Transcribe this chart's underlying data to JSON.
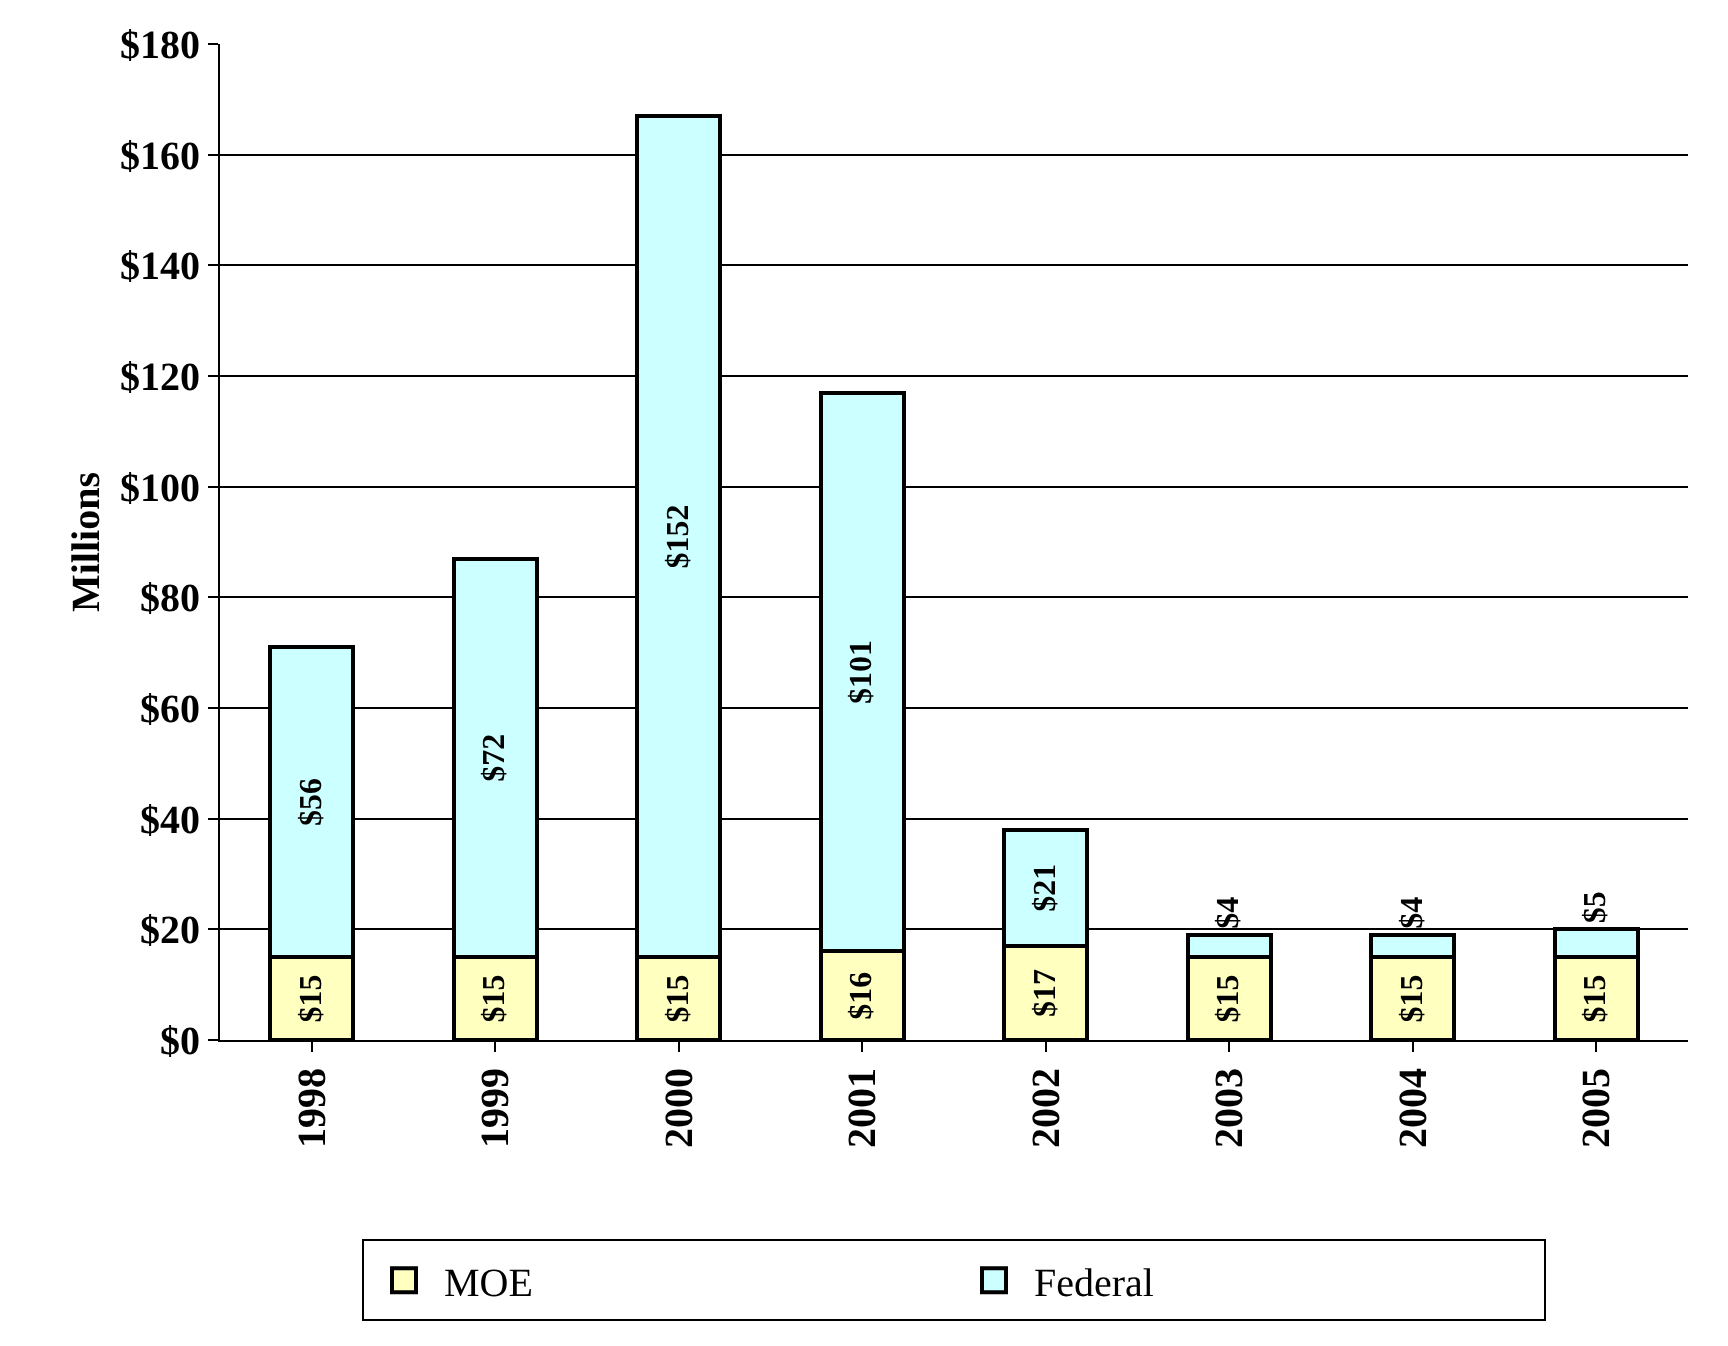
{
  "chart_data": {
    "type": "bar",
    "stacked": true,
    "ylabel": "Millions",
    "categories": [
      "1998",
      "1999",
      "2000",
      "2001",
      "2002",
      "2003",
      "2004",
      "2005"
    ],
    "series": [
      {
        "name": "MOE",
        "color": "#ffffc0",
        "values": [
          15,
          15,
          15,
          16,
          17,
          15,
          15,
          15
        ],
        "value_labels": [
          "$15",
          "$15",
          "$15",
          "$16",
          "$17",
          "$15",
          "$15",
          "$15"
        ]
      },
      {
        "name": "Federal",
        "color": "#ccffff",
        "values": [
          56,
          72,
          152,
          101,
          21,
          4,
          4,
          5
        ],
        "value_labels": [
          "$56",
          "$72",
          "$152",
          "$101",
          "$21",
          "$4",
          "$4",
          "$5"
        ]
      }
    ],
    "ylim": [
      0,
      180
    ],
    "yticks": [
      {
        "value": 0,
        "label": "$0"
      },
      {
        "value": 20,
        "label": "$20"
      },
      {
        "value": 40,
        "label": "$40"
      },
      {
        "value": 60,
        "label": "$60"
      },
      {
        "value": 80,
        "label": "$80"
      },
      {
        "value": 100,
        "label": "$100"
      },
      {
        "value": 120,
        "label": "$120"
      },
      {
        "value": 140,
        "label": "$140"
      },
      {
        "value": 160,
        "label": "$160"
      },
      {
        "value": 180,
        "label": "$180"
      }
    ],
    "grid": "y",
    "legend": "bottom"
  }
}
